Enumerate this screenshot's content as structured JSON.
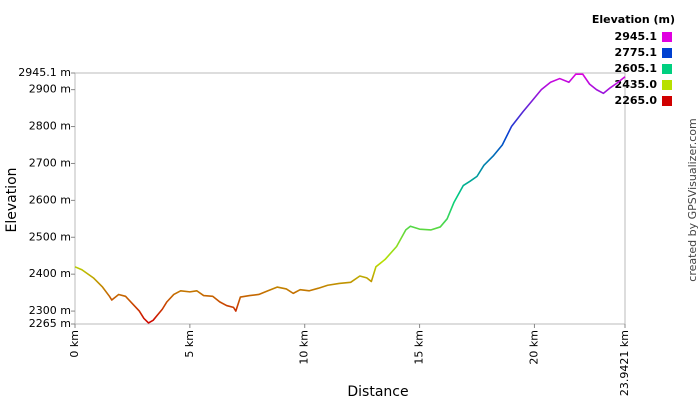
{
  "chart_data": {
    "type": "line",
    "title": "Elevation (m)",
    "x_label": "Distance",
    "y_label": "Elevation",
    "credit": "created by GPSVisualizer.com",
    "x": [
      0,
      0.3,
      0.8,
      1.2,
      1.5,
      1.6,
      1.9,
      2.2,
      2.5,
      2.8,
      3.0,
      3.2,
      3.4,
      3.6,
      3.8,
      4.0,
      4.3,
      4.6,
      5.0,
      5.3,
      5.6,
      6.0,
      6.3,
      6.6,
      6.9,
      7.0,
      7.2,
      7.6,
      8.0,
      8.4,
      8.8,
      9.2,
      9.5,
      9.8,
      10.2,
      10.6,
      11.0,
      11.5,
      12.0,
      12.4,
      12.7,
      12.9,
      13.1,
      13.5,
      14.0,
      14.4,
      14.6,
      15.0,
      15.5,
      15.9,
      16.2,
      16.5,
      16.9,
      17.2,
      17.5,
      17.8,
      18.2,
      18.6,
      19.0,
      19.5,
      19.9,
      20.3,
      20.7,
      21.1,
      21.5,
      21.8,
      22.1,
      22.4,
      22.7,
      23.0,
      23.3,
      23.6,
      23.9421
    ],
    "values": [
      2420,
      2412,
      2390,
      2365,
      2340,
      2330,
      2345,
      2340,
      2320,
      2300,
      2280,
      2268,
      2275,
      2290,
      2305,
      2325,
      2345,
      2355,
      2352,
      2355,
      2342,
      2340,
      2325,
      2315,
      2310,
      2300,
      2338,
      2342,
      2345,
      2355,
      2365,
      2360,
      2348,
      2358,
      2355,
      2362,
      2370,
      2375,
      2378,
      2395,
      2390,
      2380,
      2420,
      2440,
      2475,
      2520,
      2530,
      2522,
      2520,
      2528,
      2550,
      2595,
      2640,
      2652,
      2665,
      2695,
      2720,
      2750,
      2800,
      2840,
      2870,
      2900,
      2920,
      2930,
      2920,
      2942,
      2942,
      2915,
      2900,
      2890,
      2905,
      2918,
      2935
    ],
    "xlim": [
      0,
      23.9421
    ],
    "ylim": [
      2265,
      2945.1
    ],
    "xticks": [
      {
        "value": 0,
        "label": "0 km"
      },
      {
        "value": 5,
        "label": "5 km"
      },
      {
        "value": 10,
        "label": "10 km"
      },
      {
        "value": 15,
        "label": "15 km"
      },
      {
        "value": 20,
        "label": "20 km"
      },
      {
        "value": 23.9421,
        "label": "23.9421 km"
      }
    ],
    "yticks": [
      {
        "value": 2265,
        "label": "2265 m"
      },
      {
        "value": 2300,
        "label": "2300 m"
      },
      {
        "value": 2400,
        "label": "2400 m"
      },
      {
        "value": 2500,
        "label": "2500 m"
      },
      {
        "value": 2600,
        "label": "2600 m"
      },
      {
        "value": 2700,
        "label": "2700 m"
      },
      {
        "value": 2800,
        "label": "2800 m"
      },
      {
        "value": 2900,
        "label": "2900 m"
      },
      {
        "value": 2945.1,
        "label": "2945.1 m"
      }
    ],
    "legend": [
      {
        "value": 2945.1,
        "color": "#e000e0"
      },
      {
        "value": 2775.1,
        "color": "#0040d0"
      },
      {
        "value": 2605.1,
        "color": "#00d080"
      },
      {
        "value": 2435,
        "label": "2435.0",
        "color": "#b8e000"
      },
      {
        "value": 2265,
        "label": "2265.0",
        "color": "#d00000"
      }
    ]
  }
}
